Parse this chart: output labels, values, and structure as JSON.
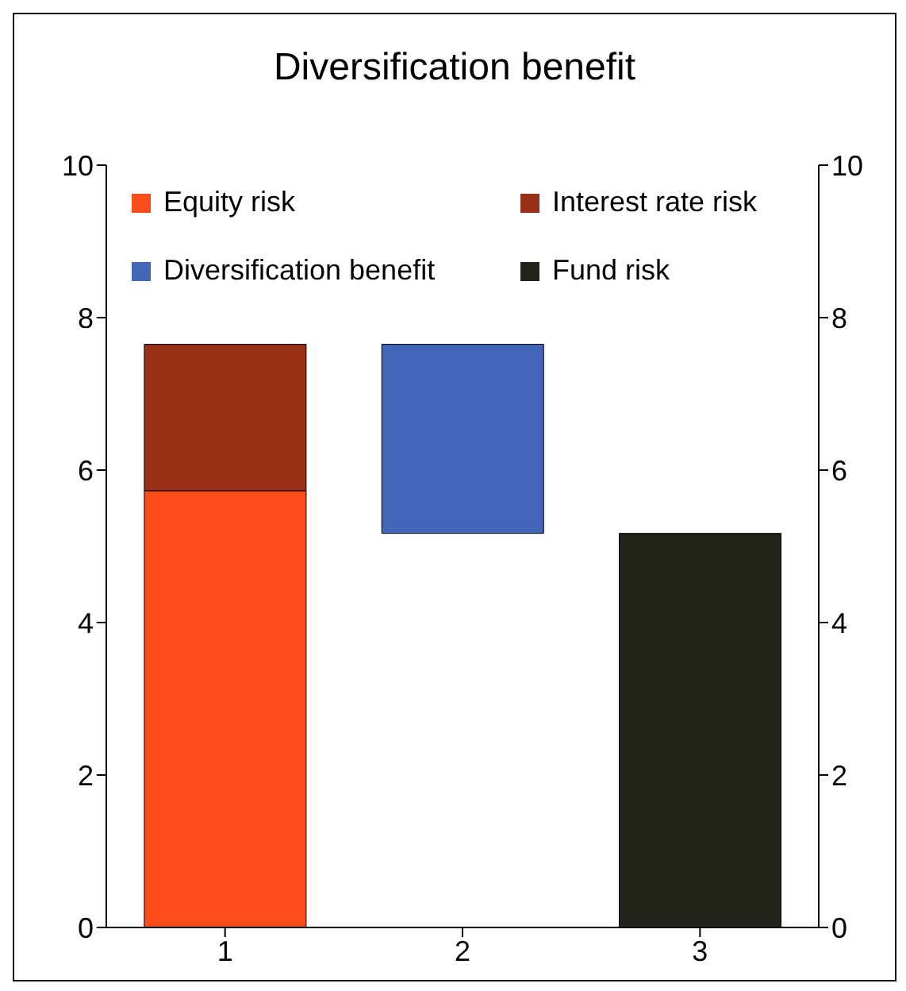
{
  "chart_data": {
    "type": "bar",
    "title": "Diversification benefit",
    "categories": [
      "1",
      "2",
      "3"
    ],
    "stacked": true,
    "series": [
      {
        "name": "Equity risk",
        "color": "#fc4c1a",
        "values": [
          5.73,
          null,
          null
        ]
      },
      {
        "name": "Interest rate risk",
        "color": "#9b3018",
        "values": [
          1.92,
          null,
          null
        ]
      },
      {
        "name": "Diversification benefit",
        "color": "#4366b8",
        "values": [
          null,
          2.48,
          null
        ],
        "base": [
          null,
          5.17,
          null
        ]
      },
      {
        "name": "Fund risk",
        "color": "#24231b",
        "values": [
          null,
          null,
          5.17
        ]
      }
    ],
    "ylim": [
      0,
      10
    ],
    "yticks": [
      0,
      2,
      4,
      6,
      8,
      10
    ],
    "y2lim": [
      0,
      10
    ],
    "y2ticks": [
      0,
      2,
      4,
      6,
      8,
      10
    ],
    "legend": "top"
  }
}
